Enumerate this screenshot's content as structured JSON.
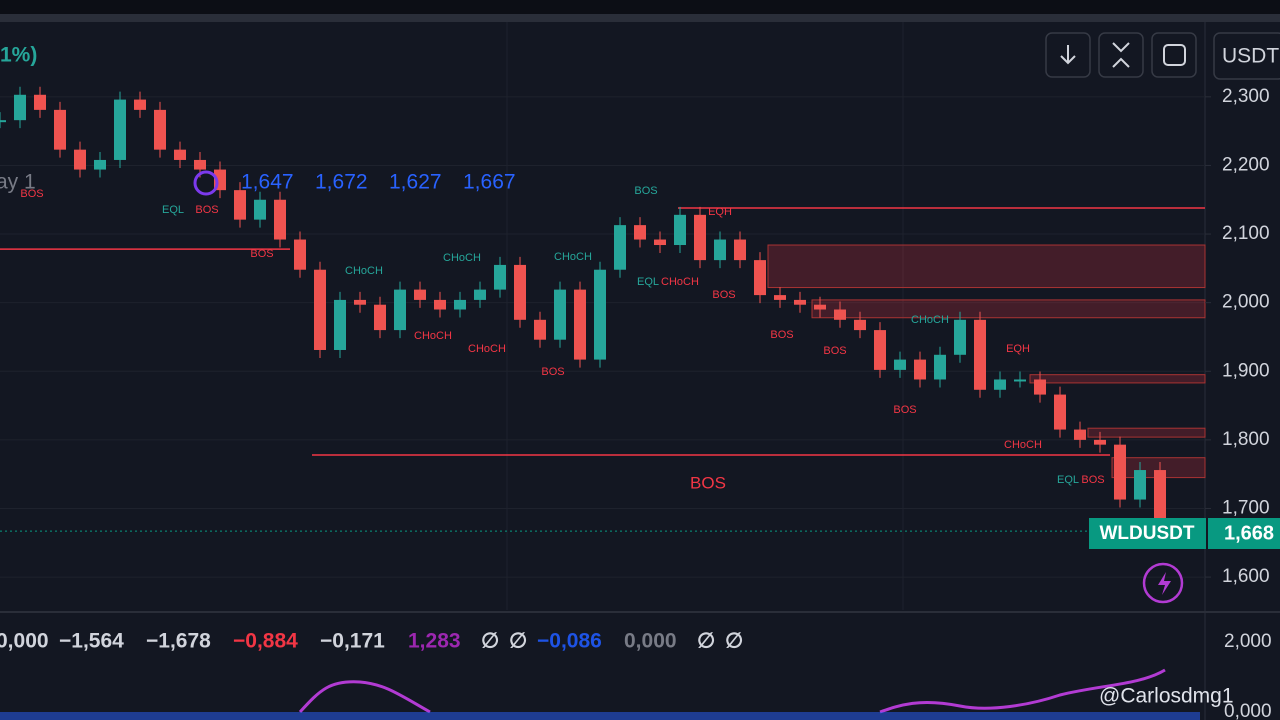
{
  "chart_data": {
    "type": "candles",
    "symbol": "WLDUSDT",
    "currency": "USDT",
    "last_price": "1,668",
    "change_text": "1%)",
    "interval_text": "ay 1",
    "ohlc": [
      "1,647",
      "1,672",
      "1,627",
      "1,667"
    ],
    "closes": [
      2266,
      2303,
      2281,
      2223,
      2194,
      2208,
      2296,
      2281,
      2223,
      2208,
      2194,
      2164,
      2121,
      2150,
      2092,
      2048,
      1931,
      2004,
      1997,
      1960,
      2019,
      2004,
      1990,
      2004,
      2019,
      2055,
      1975,
      1946,
      2019,
      1917,
      2048,
      2113,
      2092,
      2084,
      2128,
      2062,
      2092,
      2062,
      2011,
      2004,
      1997,
      1990,
      1975,
      1960,
      1902,
      1917,
      1888,
      1924,
      1975,
      1873,
      1888,
      1888,
      1866,
      1815,
      1800,
      1793,
      1713,
      1756,
      1667
    ],
    "up_color": "#26a69a",
    "down_color": "#ef5350",
    "ylim": [
      1552,
      2412
    ],
    "yticks": [
      {
        "value": 1600,
        "label": "1,600"
      },
      {
        "value": 1700,
        "label": "1,700"
      },
      {
        "value": 1800,
        "label": "1,800"
      },
      {
        "value": 1900,
        "label": "1,900"
      },
      {
        "value": 2000,
        "label": "2,000"
      },
      {
        "value": 2100,
        "label": "2,100"
      },
      {
        "value": 2200,
        "label": "2,200"
      },
      {
        "value": 2300,
        "label": "2,300"
      }
    ],
    "levels": [
      2138,
      2078,
      1778
    ],
    "zones": [
      [
        2022,
        2084
      ],
      [
        1978,
        2004
      ],
      [
        1883,
        1895
      ],
      [
        1804,
        1817
      ],
      [
        1745,
        1774
      ]
    ],
    "annotations": [
      "BOS",
      "EQL",
      "CHoCH",
      "CHoCH",
      "CHoCH",
      "CHoCH",
      "EQL",
      "EQL",
      "BOS",
      "BOS",
      "BOS",
      "BOS",
      "BOS",
      "BOS",
      "BOS",
      "BOS",
      "CHoCH",
      "CHoCH",
      "CHoCH",
      "CHoCH",
      "EQH",
      "EQH",
      "BOS",
      "BOS"
    ],
    "indicator_values": [
      "0,000",
      "−1,564",
      "−1,678",
      "−0,884",
      "−0,171",
      "1,283",
      "∅",
      "∅",
      "−0,086",
      "0,000",
      "∅",
      "∅"
    ],
    "indicator_axis": [
      "2,000",
      "0,000"
    ],
    "watermark": "@Carlosdmg1"
  }
}
